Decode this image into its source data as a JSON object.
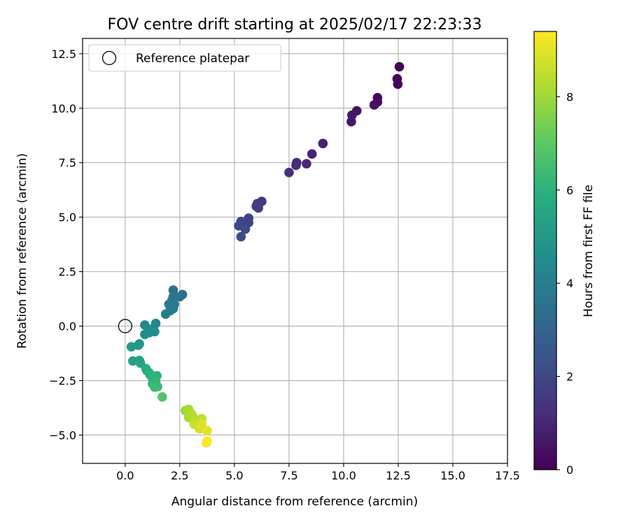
{
  "chart_data": {
    "type": "scatter",
    "title": "FOV centre drift starting at 2025/02/17 22:23:33",
    "xlabel": "Angular distance from reference (arcmin)",
    "ylabel": "Rotation from reference (arcmin)",
    "xlim": [
      -1.95,
      17.5
    ],
    "ylim": [
      -6.3,
      13.2
    ],
    "xticks": [
      0.0,
      2.5,
      5.0,
      7.5,
      10.0,
      12.5,
      15.0,
      17.5
    ],
    "xtick_labels": [
      "0.0",
      "2.5",
      "5.0",
      "7.5",
      "10.0",
      "12.5",
      "15.0",
      "17.5"
    ],
    "yticks": [
      -5.0,
      -2.5,
      0.0,
      2.5,
      5.0,
      7.5,
      10.0,
      12.5
    ],
    "ytick_labels": [
      "−5.0",
      "−2.5",
      "0.0",
      "2.5",
      "5.0",
      "7.5",
      "10.0",
      "12.5"
    ],
    "grid": true,
    "legend": {
      "placement": "upper-left",
      "entries": [
        "Reference platepar"
      ]
    },
    "reference_point": {
      "name": "Reference platepar",
      "x": 0.0,
      "y": 0.0
    },
    "colorbar": {
      "label": "Hours from first FF file",
      "colormap": "viridis",
      "range": [
        0,
        9.4
      ],
      "ticks": [
        0,
        2,
        4,
        6,
        8
      ],
      "tick_labels": [
        "0",
        "2",
        "4",
        "6",
        "8"
      ]
    },
    "points": [
      {
        "x": 12.55,
        "y": 11.9,
        "t": 0.0
      },
      {
        "x": 12.45,
        "y": 11.35,
        "t": 0.08
      },
      {
        "x": 12.48,
        "y": 11.1,
        "t": 0.15
      },
      {
        "x": 11.55,
        "y": 10.48,
        "t": 0.25
      },
      {
        "x": 11.55,
        "y": 10.28,
        "t": 0.32
      },
      {
        "x": 11.4,
        "y": 10.15,
        "t": 0.4
      },
      {
        "x": 10.6,
        "y": 9.88,
        "t": 0.5
      },
      {
        "x": 10.38,
        "y": 9.68,
        "t": 0.58
      },
      {
        "x": 10.35,
        "y": 9.38,
        "t": 0.65
      },
      {
        "x": 9.05,
        "y": 8.38,
        "t": 0.85
      },
      {
        "x": 8.55,
        "y": 7.9,
        "t": 0.95
      },
      {
        "x": 8.3,
        "y": 7.45,
        "t": 1.05
      },
      {
        "x": 7.85,
        "y": 7.5,
        "t": 1.12
      },
      {
        "x": 7.82,
        "y": 7.38,
        "t": 1.18
      },
      {
        "x": 7.5,
        "y": 7.05,
        "t": 1.25
      },
      {
        "x": 6.25,
        "y": 5.72,
        "t": 1.5
      },
      {
        "x": 6.05,
        "y": 5.62,
        "t": 1.58
      },
      {
        "x": 6.0,
        "y": 5.5,
        "t": 1.65
      },
      {
        "x": 6.1,
        "y": 5.42,
        "t": 1.7
      },
      {
        "x": 5.65,
        "y": 4.95,
        "t": 1.85
      },
      {
        "x": 5.65,
        "y": 4.75,
        "t": 1.92
      },
      {
        "x": 5.3,
        "y": 4.8,
        "t": 2.0
      },
      {
        "x": 5.2,
        "y": 4.6,
        "t": 2.05
      },
      {
        "x": 5.5,
        "y": 4.45,
        "t": 2.12
      },
      {
        "x": 5.3,
        "y": 4.1,
        "t": 2.2
      },
      {
        "x": 2.62,
        "y": 1.45,
        "t": 3.5
      },
      {
        "x": 2.5,
        "y": 1.35,
        "t": 3.55
      },
      {
        "x": 2.2,
        "y": 1.65,
        "t": 3.6
      },
      {
        "x": 2.2,
        "y": 1.35,
        "t": 3.65
      },
      {
        "x": 2.15,
        "y": 1.2,
        "t": 3.7
      },
      {
        "x": 2.25,
        "y": 1.0,
        "t": 3.75
      },
      {
        "x": 2.0,
        "y": 1.0,
        "t": 3.8
      },
      {
        "x": 2.2,
        "y": 0.8,
        "t": 3.85
      },
      {
        "x": 2.05,
        "y": 0.7,
        "t": 3.9
      },
      {
        "x": 1.85,
        "y": 0.55,
        "t": 3.95
      },
      {
        "x": 1.4,
        "y": 0.12,
        "t": 4.35
      },
      {
        "x": 0.9,
        "y": 0.05,
        "t": 4.4
      },
      {
        "x": 1.25,
        "y": -0.12,
        "t": 4.45
      },
      {
        "x": 1.35,
        "y": -0.25,
        "t": 4.5
      },
      {
        "x": 1.1,
        "y": -0.3,
        "t": 4.55
      },
      {
        "x": 0.9,
        "y": -0.38,
        "t": 4.6
      },
      {
        "x": 0.65,
        "y": -0.82,
        "t": 4.9
      },
      {
        "x": 0.6,
        "y": -0.88,
        "t": 4.95
      },
      {
        "x": 0.28,
        "y": -0.95,
        "t": 5.05
      },
      {
        "x": 0.35,
        "y": -1.6,
        "t": 5.3
      },
      {
        "x": 0.65,
        "y": -1.58,
        "t": 5.35
      },
      {
        "x": 0.7,
        "y": -1.7,
        "t": 5.4
      },
      {
        "x": 0.95,
        "y": -1.95,
        "t": 5.75
      },
      {
        "x": 1.0,
        "y": -2.05,
        "t": 5.8
      },
      {
        "x": 1.1,
        "y": -2.15,
        "t": 5.85
      },
      {
        "x": 1.15,
        "y": -2.25,
        "t": 5.9
      },
      {
        "x": 1.45,
        "y": -2.28,
        "t": 5.95
      },
      {
        "x": 1.25,
        "y": -2.4,
        "t": 6.0
      },
      {
        "x": 1.3,
        "y": -2.5,
        "t": 6.1
      },
      {
        "x": 1.4,
        "y": -2.55,
        "t": 6.15
      },
      {
        "x": 1.25,
        "y": -2.65,
        "t": 6.2
      },
      {
        "x": 1.35,
        "y": -2.8,
        "t": 6.3
      },
      {
        "x": 1.48,
        "y": -2.78,
        "t": 6.35
      },
      {
        "x": 1.7,
        "y": -3.25,
        "t": 6.8
      },
      {
        "x": 2.75,
        "y": -3.88,
        "t": 8.0
      },
      {
        "x": 2.9,
        "y": -3.82,
        "t": 8.1
      },
      {
        "x": 2.9,
        "y": -4.2,
        "t": 8.15
      },
      {
        "x": 3.05,
        "y": -4.05,
        "t": 8.25
      },
      {
        "x": 3.1,
        "y": -4.15,
        "t": 8.3
      },
      {
        "x": 3.2,
        "y": -4.3,
        "t": 8.4
      },
      {
        "x": 3.5,
        "y": -4.25,
        "t": 8.5
      },
      {
        "x": 3.15,
        "y": -4.5,
        "t": 8.6
      },
      {
        "x": 3.35,
        "y": -4.6,
        "t": 8.7
      },
      {
        "x": 3.4,
        "y": -4.72,
        "t": 8.8
      },
      {
        "x": 3.5,
        "y": -4.48,
        "t": 8.9
      },
      {
        "x": 3.75,
        "y": -4.8,
        "t": 9.0
      },
      {
        "x": 3.72,
        "y": -5.35,
        "t": 9.3
      },
      {
        "x": 3.75,
        "y": -5.28,
        "t": 9.35
      }
    ]
  }
}
